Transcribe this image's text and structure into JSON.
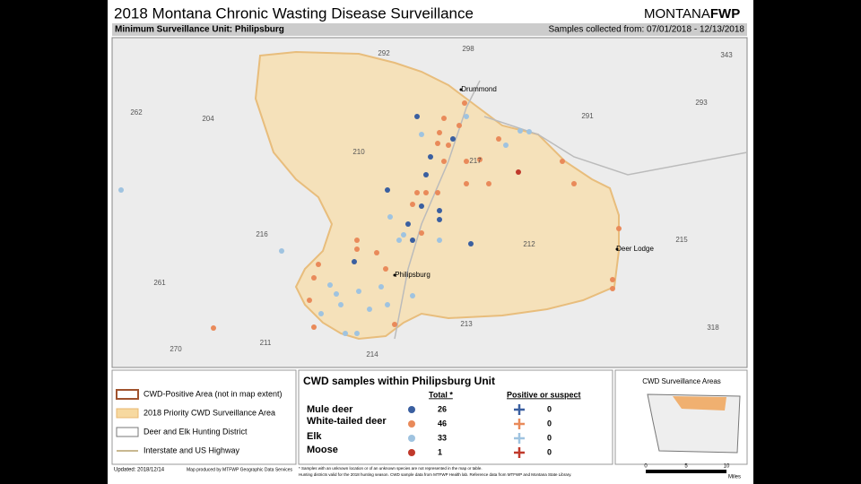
{
  "header": {
    "title": "2018 Montana Chronic Wasting Disease Surveillance",
    "logo": "MONTANA",
    "logo_bold": "FWP",
    "unit": "Minimum Surveillance Unit: Philipsburg",
    "samples": "Samples collected from:  07/01/2018 - 12/13/2018"
  },
  "map": {
    "districts": [
      "292",
      "298",
      "343",
      "262",
      "204",
      "291",
      "293",
      "210",
      "217",
      "216",
      "212",
      "215",
      "261",
      "213",
      "318",
      "270",
      "211",
      "214"
    ],
    "places": [
      "Drummond",
      "Philipsburg",
      "Deer Lodge"
    ]
  },
  "legend": {
    "items": [
      "CWD-Positive Area (not in map extent)",
      "2018 Priority CWD Surveillance Area",
      "Deer and Elk Hunting District",
      "Interstate and US Highway"
    ]
  },
  "table": {
    "title": "CWD samples within Philipsburg Unit",
    "col_total": "Total *",
    "col_positive": "Positive or suspect",
    "rows": [
      {
        "species": "Mule deer",
        "total": 26,
        "positive": 0
      },
      {
        "species": "White-tailed deer",
        "total": 46,
        "positive": 0
      },
      {
        "species": "Elk",
        "total": 33,
        "positive": 0
      },
      {
        "species": "Moose",
        "total": 1,
        "positive": 0
      }
    ]
  },
  "inset": {
    "title": "CWD Surveillance Areas"
  },
  "footer": {
    "updated": "Updated: 2018/12/14",
    "produced": "Map produced by MTFWP Geographic Data Services",
    "note1": "* Samples with an unknown location or of an unknown species are not represented in the map or table.",
    "note2": "Hunting districts valid for the 2018 hunting season. CWD sample data from MTFWP Health lab. Reference data from MTFWP and Montana State Library."
  },
  "scale": {
    "ticks": [
      "0",
      "5",
      "10"
    ],
    "unit": "Miles"
  }
}
